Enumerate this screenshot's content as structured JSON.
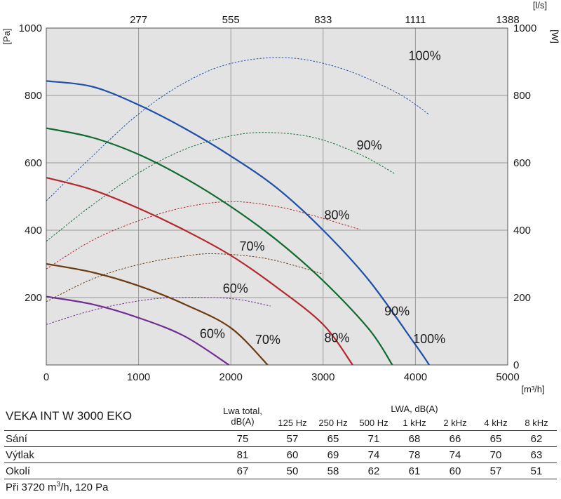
{
  "chart_data": {
    "type": "line",
    "x_axis": {
      "label": "[m³/h]",
      "min": 0,
      "max": 5000,
      "ticks": [
        0,
        1000,
        2000,
        3000,
        4000,
        5000
      ]
    },
    "x_axis_top": {
      "label": "[l/s]",
      "tick_labels": [
        "277",
        "555",
        "833",
        "1111",
        "1388"
      ],
      "tick_positions_m3h": [
        1000,
        2000,
        3000,
        4000,
        5000
      ]
    },
    "y_axis_left": {
      "label": "[Pa]",
      "min": 0,
      "max": 1000,
      "ticks": [
        200,
        400,
        600,
        800,
        1000
      ]
    },
    "y_axis_right": {
      "label": "[W]",
      "min": 0,
      "max": 1000,
      "ticks": [
        0,
        200,
        400,
        600,
        800,
        1000
      ]
    },
    "grid": true,
    "pressure_series": [
      {
        "name": "100%",
        "color": "#1f4fa8",
        "label_at": [
          4150,
          65
        ],
        "points": [
          [
            0,
            843
          ],
          [
            500,
            826
          ],
          [
            1000,
            772
          ],
          [
            1500,
            702
          ],
          [
            2000,
            620
          ],
          [
            2500,
            525
          ],
          [
            3000,
            400
          ],
          [
            3500,
            250
          ],
          [
            4000,
            60
          ],
          [
            4150,
            0
          ]
        ]
      },
      {
        "name": "90%",
        "color": "#0f6a2e",
        "label_at": [
          3800,
          147
        ],
        "points": [
          [
            0,
            703
          ],
          [
            500,
            675
          ],
          [
            1000,
            625
          ],
          [
            1500,
            555
          ],
          [
            2000,
            470
          ],
          [
            2500,
            370
          ],
          [
            3000,
            250
          ],
          [
            3500,
            105
          ],
          [
            3750,
            0
          ]
        ]
      },
      {
        "name": "80%",
        "color": "#b3282d",
        "label_at": [
          3150,
          68
        ],
        "points": [
          [
            0,
            556
          ],
          [
            500,
            520
          ],
          [
            1000,
            465
          ],
          [
            1500,
            400
          ],
          [
            2000,
            325
          ],
          [
            2500,
            230
          ],
          [
            3000,
            120
          ],
          [
            3320,
            0
          ]
        ]
      },
      {
        "name": "70%",
        "color": "#6b3b12",
        "label_at": [
          2400,
          63
        ],
        "points": [
          [
            0,
            300
          ],
          [
            500,
            275
          ],
          [
            1000,
            235
          ],
          [
            1500,
            180
          ],
          [
            2000,
            110
          ],
          [
            2400,
            0
          ]
        ]
      },
      {
        "name": "60%",
        "color": "#6e2f91",
        "label_at": [
          1800,
          80
        ],
        "points": [
          [
            0,
            203
          ],
          [
            500,
            180
          ],
          [
            1000,
            140
          ],
          [
            1500,
            85
          ],
          [
            1980,
            0
          ]
        ]
      }
    ],
    "power_series": [
      {
        "name": "100%",
        "color": "#1f4fa8",
        "label_at": [
          4100,
          905
        ],
        "points": [
          [
            0,
            487
          ],
          [
            500,
            620
          ],
          [
            1000,
            745
          ],
          [
            1500,
            838
          ],
          [
            2000,
            895
          ],
          [
            2600,
            912
          ],
          [
            3200,
            880
          ],
          [
            3800,
            808
          ],
          [
            4150,
            743
          ]
        ]
      },
      {
        "name": "90%",
        "color": "#0f6a2e",
        "label_at": [
          3500,
          640
        ],
        "points": [
          [
            0,
            367
          ],
          [
            500,
            475
          ],
          [
            1000,
            570
          ],
          [
            1500,
            640
          ],
          [
            2000,
            680
          ],
          [
            2400,
            690
          ],
          [
            2900,
            675
          ],
          [
            3400,
            625
          ],
          [
            3780,
            567
          ]
        ]
      },
      {
        "name": "80%",
        "color": "#b3282d",
        "label_at": [
          3150,
          432
        ],
        "points": [
          [
            0,
            285
          ],
          [
            500,
            370
          ],
          [
            1000,
            428
          ],
          [
            1500,
            468
          ],
          [
            2000,
            485
          ],
          [
            2500,
            470
          ],
          [
            2900,
            443
          ],
          [
            3400,
            402
          ]
        ]
      },
      {
        "name": "70%",
        "color": "#6b3b12",
        "label_at": [
          2230,
          340
        ],
        "points": [
          [
            0,
            188
          ],
          [
            500,
            255
          ],
          [
            1000,
            298
          ],
          [
            1500,
            323
          ],
          [
            1850,
            330
          ],
          [
            2400,
            315
          ],
          [
            3000,
            270
          ]
        ]
      },
      {
        "name": "60%",
        "color": "#6e2f91",
        "label_at": [
          2050,
          215
        ],
        "points": [
          [
            0,
            120
          ],
          [
            500,
            162
          ],
          [
            1000,
            190
          ],
          [
            1400,
            200
          ],
          [
            2000,
            197
          ],
          [
            2430,
            175
          ]
        ]
      }
    ]
  },
  "table": {
    "model": "VEKA INT W 3000 EKO",
    "lwa_total_header": [
      "Lwa total,",
      "dB(A)"
    ],
    "lwa_header": "LWA, dB(A)",
    "bands": [
      "125  Hz",
      "250  Hz",
      "500  Hz",
      "1 kHz",
      "2 kHz",
      "4 kHz",
      "8 kHz"
    ],
    "rows": [
      {
        "name": "Sání",
        "total": "75",
        "values": [
          "57",
          "65",
          "71",
          "68",
          "66",
          "65",
          "62"
        ]
      },
      {
        "name": "Výtlak",
        "total": "81",
        "values": [
          "60",
          "69",
          "74",
          "78",
          "74",
          "70",
          "63"
        ]
      },
      {
        "name": "Okolí",
        "total": "67",
        "values": [
          "50",
          "58",
          "62",
          "61",
          "60",
          "57",
          "51"
        ]
      }
    ],
    "footnote_before": "Při 3720  m",
    "footnote_sup": "3",
    "footnote_after": "/h, 120 Pa"
  }
}
